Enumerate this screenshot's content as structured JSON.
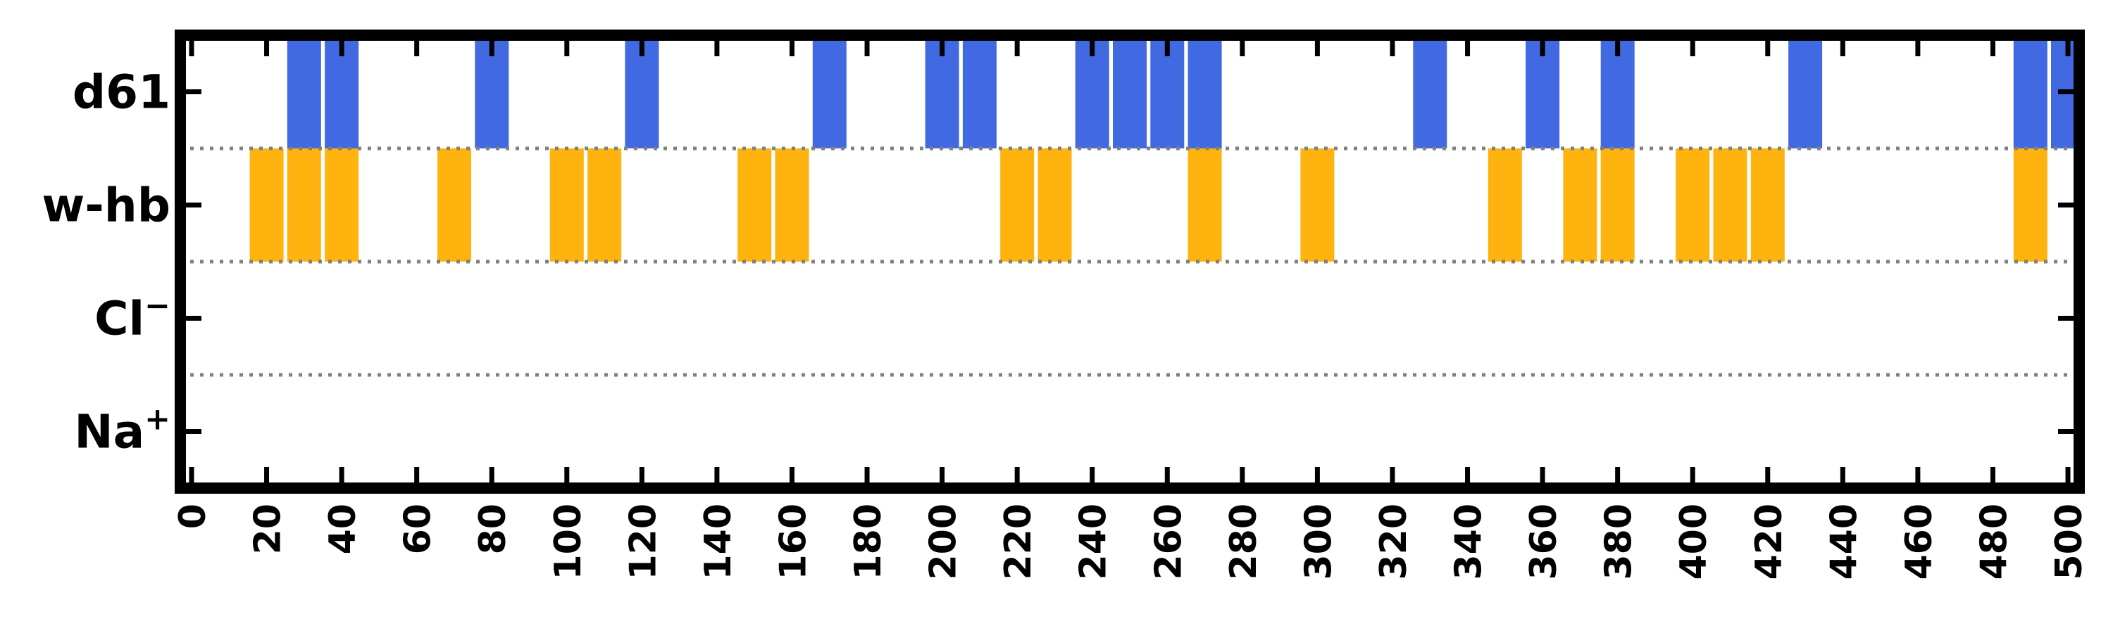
{
  "chart_data": {
    "type": "bar",
    "title": "",
    "xlabel": "",
    "ylabel": "",
    "xlim": [
      -3,
      503
    ],
    "bin_width": 9,
    "x_ticks": [
      0,
      20,
      40,
      60,
      80,
      100,
      120,
      140,
      160,
      180,
      200,
      220,
      240,
      260,
      280,
      300,
      320,
      340,
      360,
      380,
      400,
      420,
      440,
      460,
      480,
      500
    ],
    "rows": [
      {
        "label": "d61",
        "sup": "",
        "color": "#4169e1",
        "x": [
          30,
          40,
          80,
          120,
          170,
          200,
          210,
          240,
          250,
          260,
          270,
          330,
          360,
          380,
          430,
          490,
          500
        ]
      },
      {
        "label": "w-hb",
        "sup": "",
        "color": "#ffb30f",
        "x": [
          20,
          30,
          40,
          70,
          100,
          110,
          150,
          160,
          220,
          230,
          270,
          300,
          350,
          370,
          380,
          400,
          410,
          420,
          490
        ]
      },
      {
        "label": "Cl",
        "sup": "−",
        "color": "#4169e1",
        "x": []
      },
      {
        "label": "Na",
        "sup": "+",
        "color": "#ffb30f",
        "x": []
      }
    ],
    "grid": "dotted row separators",
    "legend": "none"
  }
}
